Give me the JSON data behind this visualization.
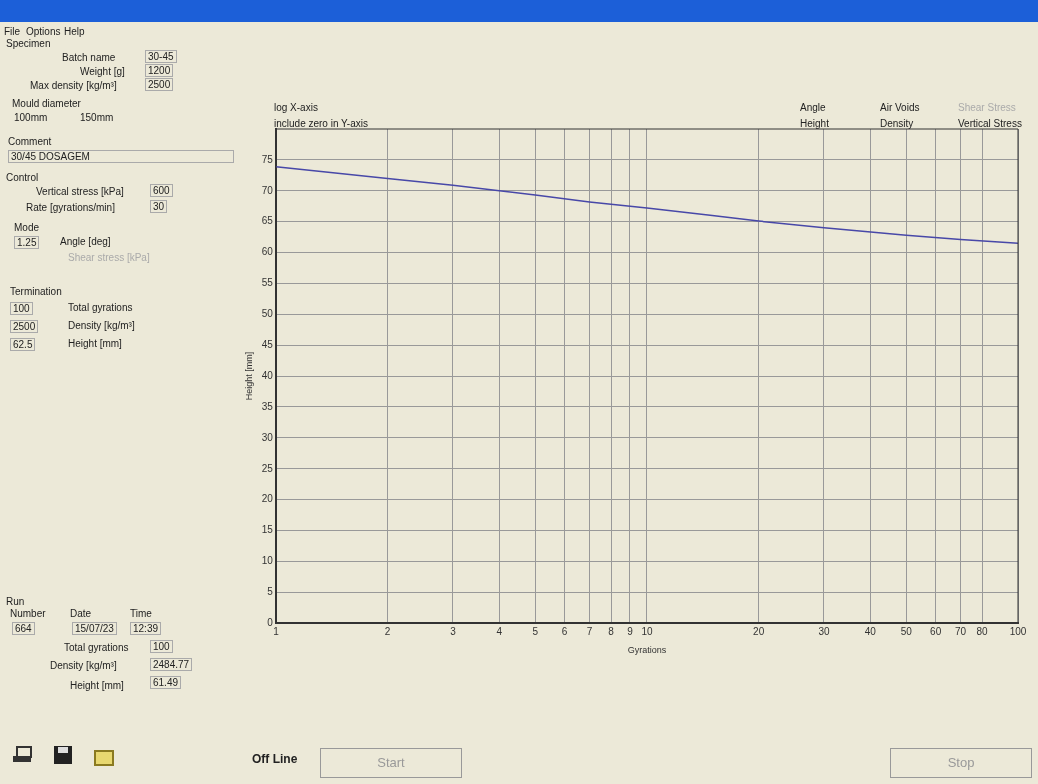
{
  "chart_data": [
    {
      "type": "line",
      "xlabel": "Gyrations",
      "ylabel": "Height [mm]",
      "log": "x",
      "grid": true,
      "marker": "none",
      "line_style": "solid",
      "legend": false,
      "xlim": [
        1,
        100
      ],
      "xticks": [
        1,
        2,
        3,
        4,
        5,
        6,
        7,
        8,
        9,
        10,
        20,
        30,
        40,
        50,
        60,
        70,
        80,
        100
      ],
      "ylim": [
        0,
        80
      ],
      "yticks": [
        0,
        5,
        10,
        15,
        20,
        25,
        30,
        35,
        40,
        45,
        50,
        55,
        60,
        65,
        70,
        75
      ],
      "series": [
        {
          "color": "#4848a8",
          "x": [
            1,
            2,
            3,
            4,
            5,
            7,
            10,
            15,
            20,
            30,
            50,
            70,
            100
          ],
          "values": [
            73.9,
            72.0,
            70.9,
            70.0,
            69.3,
            68.2,
            67.2,
            66.0,
            65.1,
            64.0,
            62.8,
            62.1,
            61.5
          ]
        }
      ]
    },
    {
      "type": "other",
      "annotations": [
        "File",
        "Options",
        "Help",
        "Specimen",
        "Batch name",
        "30-45",
        "Weight [g]",
        "1200",
        "Max density [kg/m³]",
        "2500",
        "Mould diameter",
        "100mm",
        "150mm",
        "Comment",
        "30/45 DOSAGEM",
        "Control",
        "Vertical stress [kPa]",
        "600",
        "Rate [gyrations/min]",
        "30",
        "Mode",
        "1.25",
        "Angle [deg]",
        "Shear stress [kPa]",
        "Termination",
        "100",
        "Total gyrations",
        "2500",
        "Density [kg/m³]",
        "62.5",
        "Height [mm]",
        "Run",
        "Number",
        "Date",
        "Time",
        "664",
        "15/07/23",
        "12:39",
        "Total gyrations",
        "100",
        "Density [kg/m³]",
        "2484.77",
        "Height [mm]",
        "61.49",
        "Off Line",
        "Start",
        "Stop",
        "log X-axis",
        "include zero in Y-axis",
        "Angle",
        "Air Voids",
        "Shear Stress",
        "Height",
        "Density",
        "Vertical Stress"
      ]
    }
  ]
}
